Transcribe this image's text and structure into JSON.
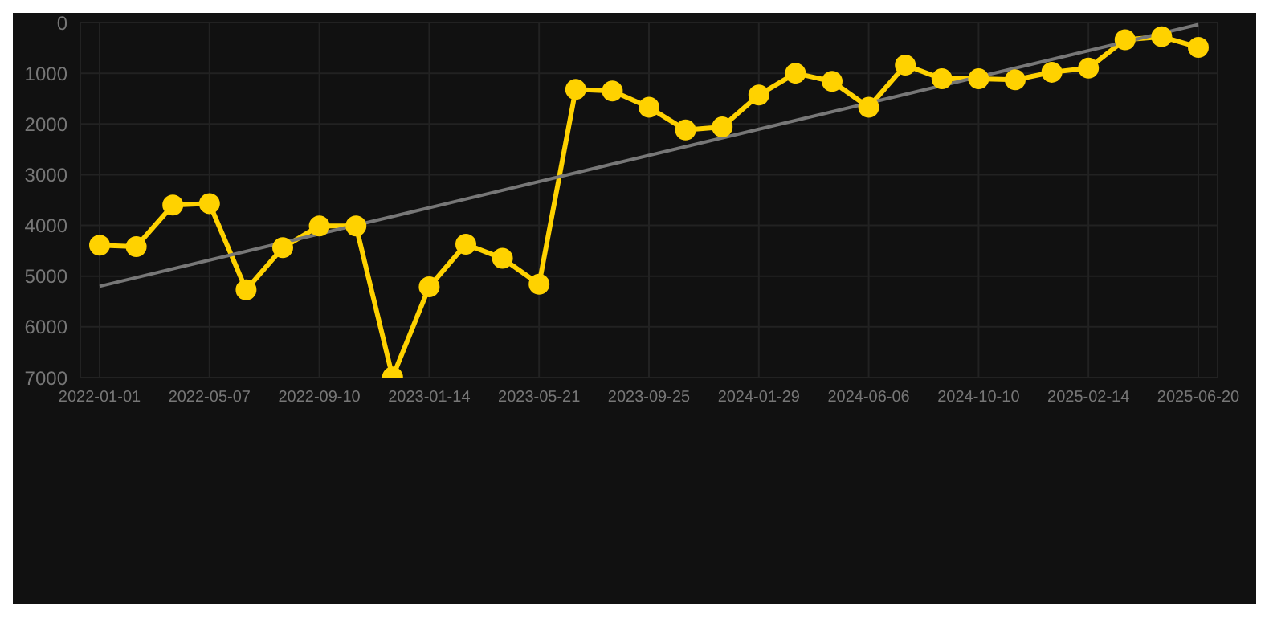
{
  "chart_data": {
    "type": "line",
    "categories": [
      "2022-01-01",
      null,
      null,
      "2022-05-07",
      null,
      null,
      "2022-09-10",
      null,
      null,
      "2023-01-14",
      null,
      null,
      "2023-05-21",
      null,
      null,
      "2023-09-25",
      null,
      null,
      "2024-01-29",
      null,
      null,
      "2024-06-06",
      null,
      null,
      "2024-10-10",
      null,
      null,
      "2025-02-14",
      null,
      null,
      "2025-06-20"
    ],
    "series": [
      {
        "color": "#ffd200",
        "marker": "circle",
        "values": [
          4390,
          4420,
          3600,
          3570,
          5270,
          4440,
          4010,
          4010,
          6990,
          5210,
          4370,
          4650,
          5160,
          1320,
          1350,
          1670,
          2120,
          2060,
          1430,
          1000,
          1160,
          1670,
          840,
          1110,
          1110,
          1130,
          980,
          900,
          340,
          280,
          490
        ]
      },
      {
        "type": "line",
        "color": "#777777",
        "marker": "none",
        "values": [
          5200,
          null,
          null,
          null,
          null,
          null,
          null,
          null,
          null,
          null,
          null,
          null,
          null,
          null,
          null,
          null,
          null,
          null,
          null,
          null,
          null,
          null,
          null,
          null,
          null,
          null,
          null,
          null,
          null,
          null,
          40
        ]
      }
    ],
    "ylim": [
      7000,
      0
    ],
    "yticks": [
      0,
      1000,
      2000,
      3000,
      4000,
      5000,
      6000,
      7000
    ],
    "grid": true,
    "line_style": "solid"
  }
}
